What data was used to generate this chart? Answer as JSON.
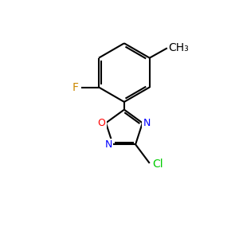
{
  "background_color": "#ffffff",
  "bond_color": "#000000",
  "atom_colors": {
    "O": "#ff0000",
    "N": "#0000ff",
    "F": "#cc8800",
    "Cl": "#00cc00",
    "C": "#000000"
  },
  "font_size": 9,
  "line_width": 1.5,
  "figsize": [
    3.0,
    3.0
  ],
  "dpi": 100
}
